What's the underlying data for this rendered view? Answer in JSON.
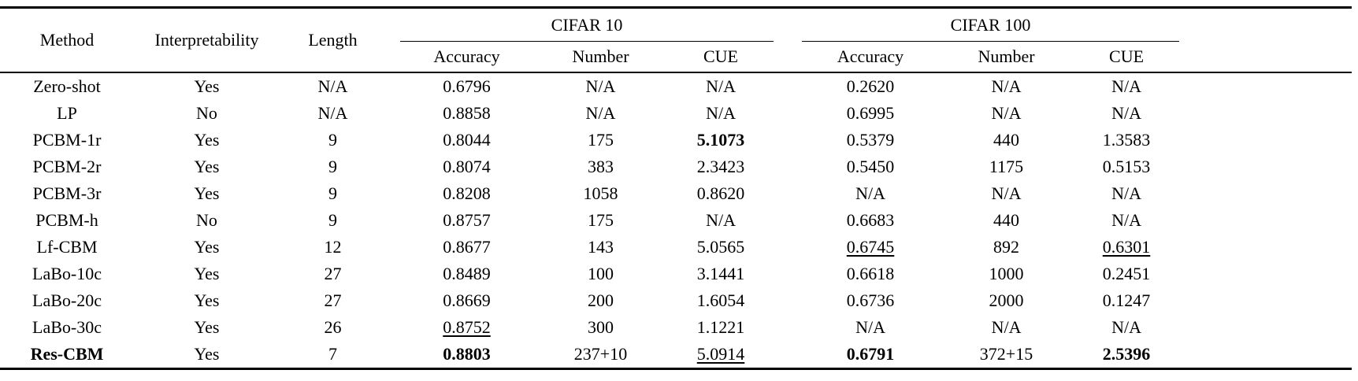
{
  "page": {
    "background": "#ffffff",
    "text_color": "#000000"
  },
  "table": {
    "columns": [
      "Method",
      "Interpretability",
      "Length"
    ],
    "group_headers": [
      {
        "label": "CIFAR 10"
      },
      {
        "label": "CIFAR 100"
      }
    ],
    "sub_columns": [
      "Accuracy",
      "Number",
      "CUE",
      "Accuracy",
      "Number",
      "CUE"
    ],
    "rows": [
      {
        "cells": [
          {
            "t": "Zero-shot"
          },
          {
            "t": "Yes"
          },
          {
            "t": "N/A"
          },
          {
            "t": "0.6796"
          },
          {
            "t": "N/A"
          },
          {
            "t": "N/A"
          },
          {
            "t": "0.2620"
          },
          {
            "t": "N/A"
          },
          {
            "t": "N/A"
          }
        ]
      },
      {
        "cells": [
          {
            "t": "LP"
          },
          {
            "t": "No"
          },
          {
            "t": "N/A"
          },
          {
            "t": "0.8858"
          },
          {
            "t": "N/A"
          },
          {
            "t": "N/A"
          },
          {
            "t": "0.6995"
          },
          {
            "t": "N/A"
          },
          {
            "t": "N/A"
          }
        ]
      },
      {
        "cells": [
          {
            "t": "PCBM-1r"
          },
          {
            "t": "Yes"
          },
          {
            "t": "9"
          },
          {
            "t": "0.8044"
          },
          {
            "t": "175"
          },
          {
            "t": "5.1073",
            "b": true
          },
          {
            "t": "0.5379"
          },
          {
            "t": "440"
          },
          {
            "t": "1.3583"
          }
        ]
      },
      {
        "cells": [
          {
            "t": "PCBM-2r"
          },
          {
            "t": "Yes"
          },
          {
            "t": "9"
          },
          {
            "t": "0.8074"
          },
          {
            "t": "383"
          },
          {
            "t": "2.3423"
          },
          {
            "t": "0.5450"
          },
          {
            "t": "1175"
          },
          {
            "t": "0.5153"
          }
        ]
      },
      {
        "cells": [
          {
            "t": "PCBM-3r"
          },
          {
            "t": "Yes"
          },
          {
            "t": "9"
          },
          {
            "t": "0.8208"
          },
          {
            "t": "1058"
          },
          {
            "t": "0.8620"
          },
          {
            "t": "N/A"
          },
          {
            "t": "N/A"
          },
          {
            "t": "N/A"
          }
        ]
      },
      {
        "cells": [
          {
            "t": "PCBM-h"
          },
          {
            "t": "No"
          },
          {
            "t": "9"
          },
          {
            "t": "0.8757"
          },
          {
            "t": "175"
          },
          {
            "t": "N/A"
          },
          {
            "t": "0.6683"
          },
          {
            "t": "440"
          },
          {
            "t": "N/A"
          }
        ]
      },
      {
        "cells": [
          {
            "t": "Lf-CBM"
          },
          {
            "t": "Yes"
          },
          {
            "t": "12"
          },
          {
            "t": "0.8677"
          },
          {
            "t": "143"
          },
          {
            "t": "5.0565"
          },
          {
            "t": "0.6745",
            "u": true
          },
          {
            "t": "892"
          },
          {
            "t": "0.6301",
            "u": true
          }
        ]
      },
      {
        "cells": [
          {
            "t": "LaBo-10c"
          },
          {
            "t": "Yes"
          },
          {
            "t": "27"
          },
          {
            "t": "0.8489"
          },
          {
            "t": "100"
          },
          {
            "t": "3.1441"
          },
          {
            "t": "0.6618"
          },
          {
            "t": "1000"
          },
          {
            "t": "0.2451"
          }
        ]
      },
      {
        "cells": [
          {
            "t": "LaBo-20c"
          },
          {
            "t": "Yes"
          },
          {
            "t": "27"
          },
          {
            "t": "0.8669"
          },
          {
            "t": "200"
          },
          {
            "t": "1.6054"
          },
          {
            "t": "0.6736"
          },
          {
            "t": "2000"
          },
          {
            "t": "0.1247"
          }
        ]
      },
      {
        "cells": [
          {
            "t": "LaBo-30c"
          },
          {
            "t": "Yes"
          },
          {
            "t": "26"
          },
          {
            "t": "0.8752",
            "u": true
          },
          {
            "t": "300"
          },
          {
            "t": "1.1221"
          },
          {
            "t": "N/A"
          },
          {
            "t": "N/A"
          },
          {
            "t": "N/A"
          }
        ]
      },
      {
        "cells": [
          {
            "t": "Res-CBM",
            "b": true
          },
          {
            "t": "Yes"
          },
          {
            "t": "7"
          },
          {
            "t": "0.8803",
            "b": true
          },
          {
            "t": "237+10"
          },
          {
            "t": "5.0914",
            "u": true
          },
          {
            "t": "0.6791",
            "b": true
          },
          {
            "t": "372+15"
          },
          {
            "t": "2.5396",
            "b": true
          }
        ]
      }
    ]
  }
}
